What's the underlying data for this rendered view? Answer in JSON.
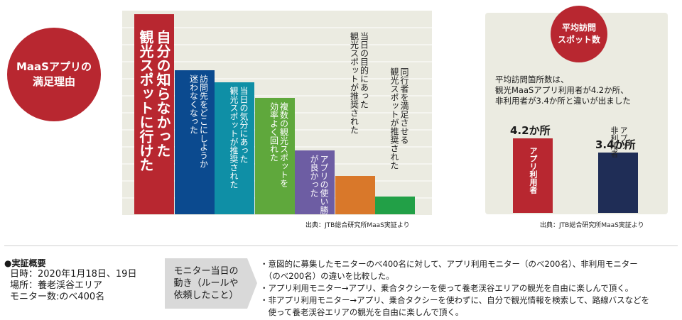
{
  "left_badge": "MaaSアプリの\n満足理由",
  "right_badge": "平均訪問\nスポット数",
  "chart_data": [
    {
      "type": "bar",
      "categories": [
        "自分の知らなかった\n観光スポットに行けた",
        "訪問先をどこにしようか\n迷わなくなった",
        "当日の気分にあった\n観光スポットが推奨された",
        "複数の観光スポットを\n効率よく回れた",
        "アプリの使い勝手\nが良かった",
        "当日の目的にあった\n観光スポットが推奨された",
        "同行者を満足させる\n観光スポットが推奨された"
      ],
      "values": [
        100,
        72,
        66,
        58,
        32,
        19,
        9
      ],
      "colors": [
        "#b82730",
        "#0b4a8f",
        "#0f8fa6",
        "#5fa83c",
        "#6d5da3",
        "#d9782a",
        "#22a047"
      ]
    },
    {
      "type": "bar",
      "categories": [
        "アプリ利用者",
        "アプリ非利用者"
      ],
      "values": [
        4.2,
        3.4
      ],
      "value_labels": [
        "4.2か所",
        "3.4か所"
      ],
      "colors": [
        "#b82730",
        "#1f2d56"
      ]
    }
  ],
  "right_text": "平均訪問箇所数は、\n観光MaaSアプリ利用者が4.2か所、\n非利用者が3.4か所と違いが出ました",
  "source_left": "出典：JTB総合研究所MaaS実証より",
  "source_right": "出典：JTB総合研究所MaaS実証より",
  "overview": {
    "title": "●実証概要",
    "lines": [
      "日時：2020年1月18日、19日",
      "場所：養老渓谷エリア",
      "モニター数:のべ400名"
    ]
  },
  "tag": "モニター当日の\n動き（ルールや\n依頼したこと）",
  "description": [
    "・意図的に募集したモニターのべ400名に対して、アプリ利用モニター（のべ200名）、非利用モニター",
    "　（のべ200名）の違いを比較した。",
    "・アプリ利用モニター→アプリ、乗合タクシーを使って養老渓谷エリアの観光を自由に楽しんで頂く。",
    "・非アプリ利用モニター→アプリ、乗合タクシーを使わずに、自分で観光情報を検索して、路線バスなどを",
    "　使って養老渓谷エリアの観光を自由に楽しんで頂く。"
  ]
}
